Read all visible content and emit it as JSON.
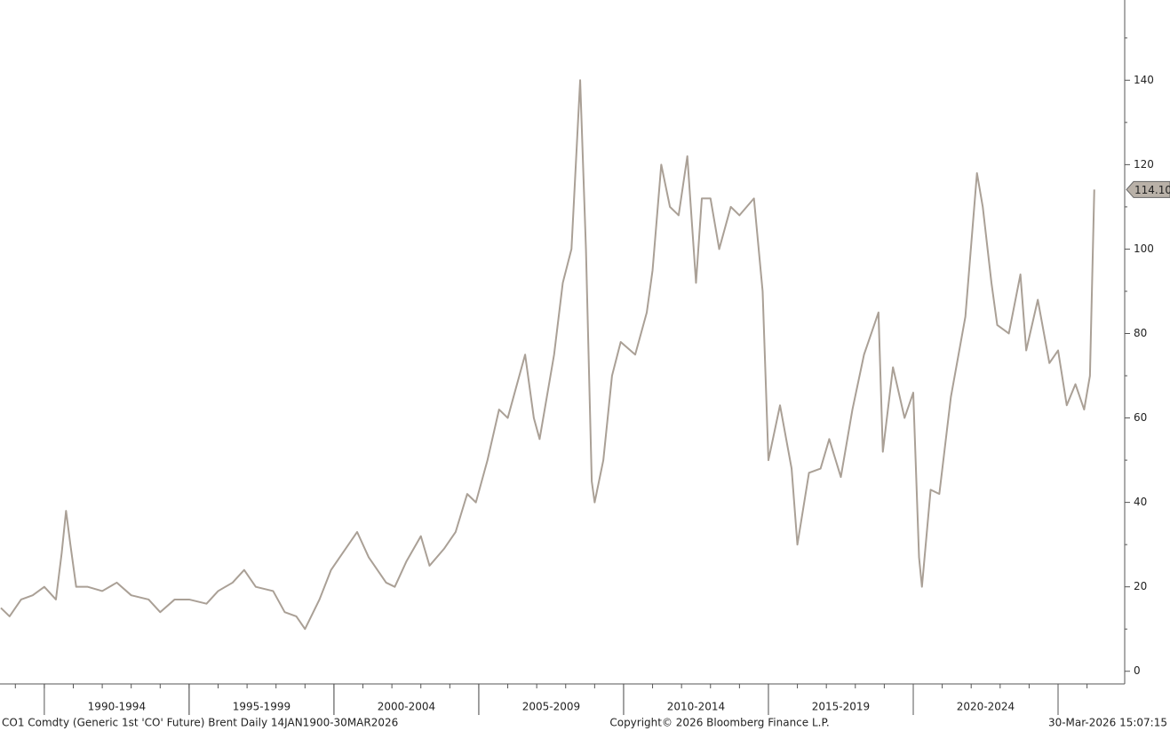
{
  "chart_data": {
    "type": "line",
    "footer_left": "CO1 Comdty (Generic 1st 'CO' Future) Brent Daily 14JAN1900-30MAR2026",
    "footer_center": "Copyright© 2026 Bloomberg Finance L.P.",
    "footer_right": "30-Mar-2026 15:07:15",
    "x": [
      1988.5,
      1988.8,
      1989.2,
      1989.6,
      1990.0,
      1990.4,
      1990.6,
      1990.75,
      1990.9,
      1991.1,
      1991.5,
      1992.0,
      1992.5,
      1993.0,
      1993.6,
      1994.0,
      1994.5,
      1995.0,
      1995.6,
      1996.0,
      1996.5,
      1996.9,
      1997.3,
      1997.9,
      1998.3,
      1998.7,
      1999.0,
      1999.5,
      1999.9,
      2000.4,
      2000.8,
      2001.2,
      2001.8,
      2002.1,
      2002.5,
      2003.0,
      2003.3,
      2003.8,
      2004.2,
      2004.6,
      2004.9,
      2005.3,
      2005.7,
      2006.0,
      2006.6,
      2006.9,
      2007.1,
      2007.6,
      2007.9,
      2008.2,
      2008.5,
      2008.7,
      2008.9,
      2009.0,
      2009.3,
      2009.6,
      2009.9,
      2010.4,
      2010.8,
      2011.0,
      2011.3,
      2011.6,
      2011.9,
      2012.2,
      2012.5,
      2012.7,
      2013.0,
      2013.3,
      2013.7,
      2014.0,
      2014.5,
      2014.8,
      2015.0,
      2015.4,
      2015.8,
      2016.0,
      2016.4,
      2016.8,
      2017.1,
      2017.5,
      2017.9,
      2018.3,
      2018.8,
      2018.95,
      2019.3,
      2019.7,
      2020.0,
      2020.2,
      2020.3,
      2020.6,
      2020.9,
      2021.3,
      2021.8,
      2022.2,
      2022.4,
      2022.7,
      2022.9,
      2023.3,
      2023.7,
      2023.9,
      2024.3,
      2024.7,
      2025.0,
      2025.3,
      2025.6,
      2025.9,
      2026.1,
      2026.25
    ],
    "series": [
      {
        "name": "CO1 Comdty",
        "color": "#aaa096",
        "values": [
          15,
          13,
          17,
          18,
          20,
          17,
          28,
          38,
          30,
          20,
          20,
          19,
          21,
          18,
          17,
          14,
          17,
          17,
          16,
          19,
          21,
          24,
          20,
          19,
          14,
          13,
          10,
          17,
          24,
          29,
          33,
          27,
          21,
          20,
          26,
          32,
          25,
          29,
          33,
          42,
          40,
          50,
          62,
          60,
          75,
          60,
          55,
          75,
          92,
          100,
          140,
          100,
          45,
          40,
          50,
          70,
          78,
          75,
          85,
          95,
          120,
          110,
          108,
          122,
          92,
          112,
          112,
          100,
          110,
          108,
          112,
          90,
          50,
          63,
          48,
          30,
          47,
          48,
          55,
          46,
          62,
          75,
          85,
          52,
          72,
          60,
          66,
          27,
          20,
          43,
          42,
          65,
          84,
          118,
          110,
          92,
          82,
          80,
          94,
          76,
          88,
          73,
          76,
          63,
          68,
          62,
          70,
          114.1
        ]
      }
    ],
    "last_value": 114.1,
    "last_value_label": "114.10",
    "xlim": [
      1988.47,
      2027.3
    ],
    "xticks": [
      1989,
      1990,
      1991,
      1992,
      1993,
      1994,
      1995,
      1996,
      1997,
      1998,
      1999,
      2000,
      2001,
      2002,
      2003,
      2004,
      2005,
      2006,
      2007,
      2008,
      2009,
      2010,
      2011,
      2012,
      2013,
      2014,
      2015,
      2016,
      2017,
      2018,
      2019,
      2020,
      2021,
      2022,
      2023,
      2024,
      2025,
      2026
    ],
    "xbands": [
      {
        "label": "1990-1994",
        "start": 1990,
        "end": 1995
      },
      {
        "label": "1995-1999",
        "start": 1995,
        "end": 2000
      },
      {
        "label": "2000-2004",
        "start": 2000,
        "end": 2005
      },
      {
        "label": "2005-2009",
        "start": 2005,
        "end": 2010
      },
      {
        "label": "2010-2014",
        "start": 2010,
        "end": 2015
      },
      {
        "label": "2015-2019",
        "start": 2015,
        "end": 2020
      },
      {
        "label": "2020-2024",
        "start": 2020,
        "end": 2025
      }
    ],
    "ylim": [
      -3,
      159
    ],
    "yticks": [
      0,
      20,
      40,
      60,
      80,
      100,
      120,
      140
    ],
    "yminorticks": [
      10,
      30,
      50,
      70,
      90,
      110,
      130,
      150
    ],
    "grid": false
  }
}
